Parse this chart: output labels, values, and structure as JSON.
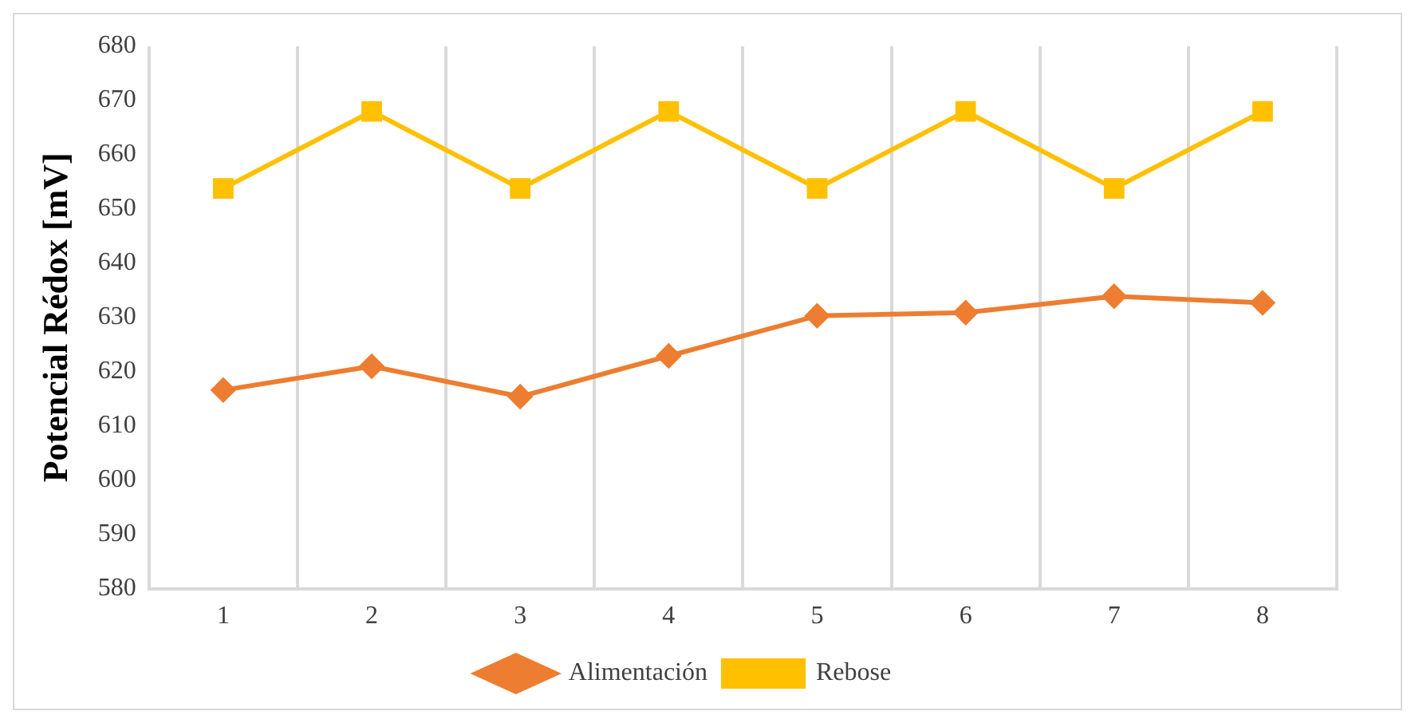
{
  "chart_data": {
    "type": "line",
    "ylabel": "Potencial Rédox [mV]",
    "categories": [
      "1",
      "2",
      "3",
      "4",
      "5",
      "6",
      "7",
      "8"
    ],
    "series": [
      {
        "name": "Alimentación",
        "color": "#ed7d31",
        "marker": "diamond",
        "values": [
          616.6,
          621,
          615.4,
          622.9,
          630.3,
          630.9,
          633.9,
          632.7
        ]
      },
      {
        "name": "Rebose",
        "color": "#ffc000",
        "marker": "square",
        "values": [
          653.8,
          668,
          653.8,
          668,
          653.8,
          668,
          653.8,
          668
        ]
      }
    ],
    "ylim": [
      580,
      680
    ],
    "yticks": [
      580,
      590,
      600,
      610,
      620,
      630,
      640,
      650,
      660,
      670,
      680
    ],
    "grid": "x",
    "legend": "bottom"
  }
}
